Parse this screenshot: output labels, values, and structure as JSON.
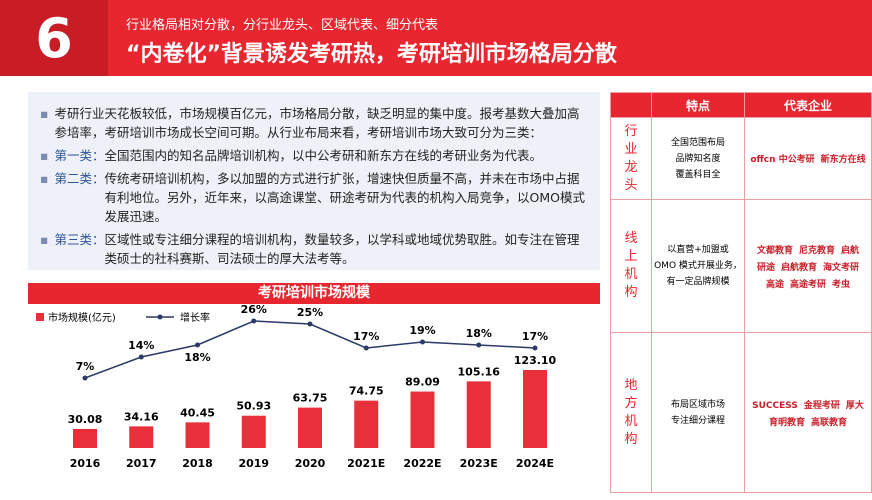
{
  "header": {
    "number": "6",
    "subtitle": "行业格局相对分散，分行业龙头、区域代表、细分代表",
    "title": "“内卷化”背景诱发考研热，考研培训市场格局分散"
  },
  "intro": {
    "paragraph": "考研行业天花板较低，市场规模百亿元，市场格局分散，缺乏明显的集中度。报考基数大叠加高参培率，考研培训市场成长空间可期。从行业布局来看，考研培训市场大致可分为三类：",
    "items": [
      {
        "label": "第一类：",
        "text": "全国范围内的知名品牌培训机构，以中公考研和新东方在线的考研业务为代表。"
      },
      {
        "label": "第二类：",
        "text": "传统考研培训机构，多以加盟的方式进行扩张，增速快但质量不高，并未在市场中占据有利地位。另外，近年来，以高途课堂、研途考研为代表的机构入局竞争，以OMO模式发展迅速。"
      },
      {
        "label": "第三类：",
        "text": "区域性或专注细分课程的培训机构，数量较多，以学科或地域优势取胜。如专注在管理类硕士的社科赛斯、司法硕士的厚大法考等。"
      }
    ]
  },
  "table": {
    "headers": [
      "特点",
      "代表企业"
    ],
    "rows": [
      {
        "label": "行业龙头",
        "feature": "全国范围布局\n品牌知名度\n覆盖科目全",
        "logos": [
          "offcn 中公考研",
          "新东方在线"
        ]
      },
      {
        "label": "线上机构",
        "feature": "以直营+加盟或\nOMO 模式开展业务，\n有一定品牌规模",
        "logos": [
          "文都教育",
          "尼克教育",
          "启航",
          "研途",
          "启航教育",
          "海文考研",
          "高途",
          "高途考研",
          "考虫"
        ]
      },
      {
        "label": "地方机构",
        "feature": "布局区域市场\n专注细分课程",
        "logos": [
          "SUCCESS",
          "金程考研",
          "厚大",
          "育明教育",
          "高联教育"
        ]
      }
    ]
  },
  "chart_data": {
    "type": "bar",
    "title": "考研培训市场规模",
    "categories": [
      "2016",
      "2017",
      "2018",
      "2019",
      "2020",
      "2021E",
      "2022E",
      "2023E",
      "2024E"
    ],
    "series": [
      {
        "name": "市场规模(亿元)",
        "color": "#e8303a",
        "values": [
          30.08,
          34.16,
          40.45,
          50.93,
          63.75,
          74.75,
          89.09,
          105.16,
          123.1
        ],
        "value_labels": [
          "30.08",
          "34.16",
          "40.45",
          "50.93",
          "63.75",
          "74.75",
          "89.09",
          "105.16",
          "123.10"
        ]
      },
      {
        "name": "增长率",
        "type": "line",
        "axis": "y2",
        "color": "#2b3a67",
        "values": [
          7,
          14,
          18,
          26,
          25,
          17,
          19,
          18,
          17
        ],
        "value_labels": [
          "7%",
          "14%",
          "18%",
          "26%",
          "25%",
          "17%",
          "19%",
          "18%",
          "17%"
        ]
      }
    ]
  }
}
